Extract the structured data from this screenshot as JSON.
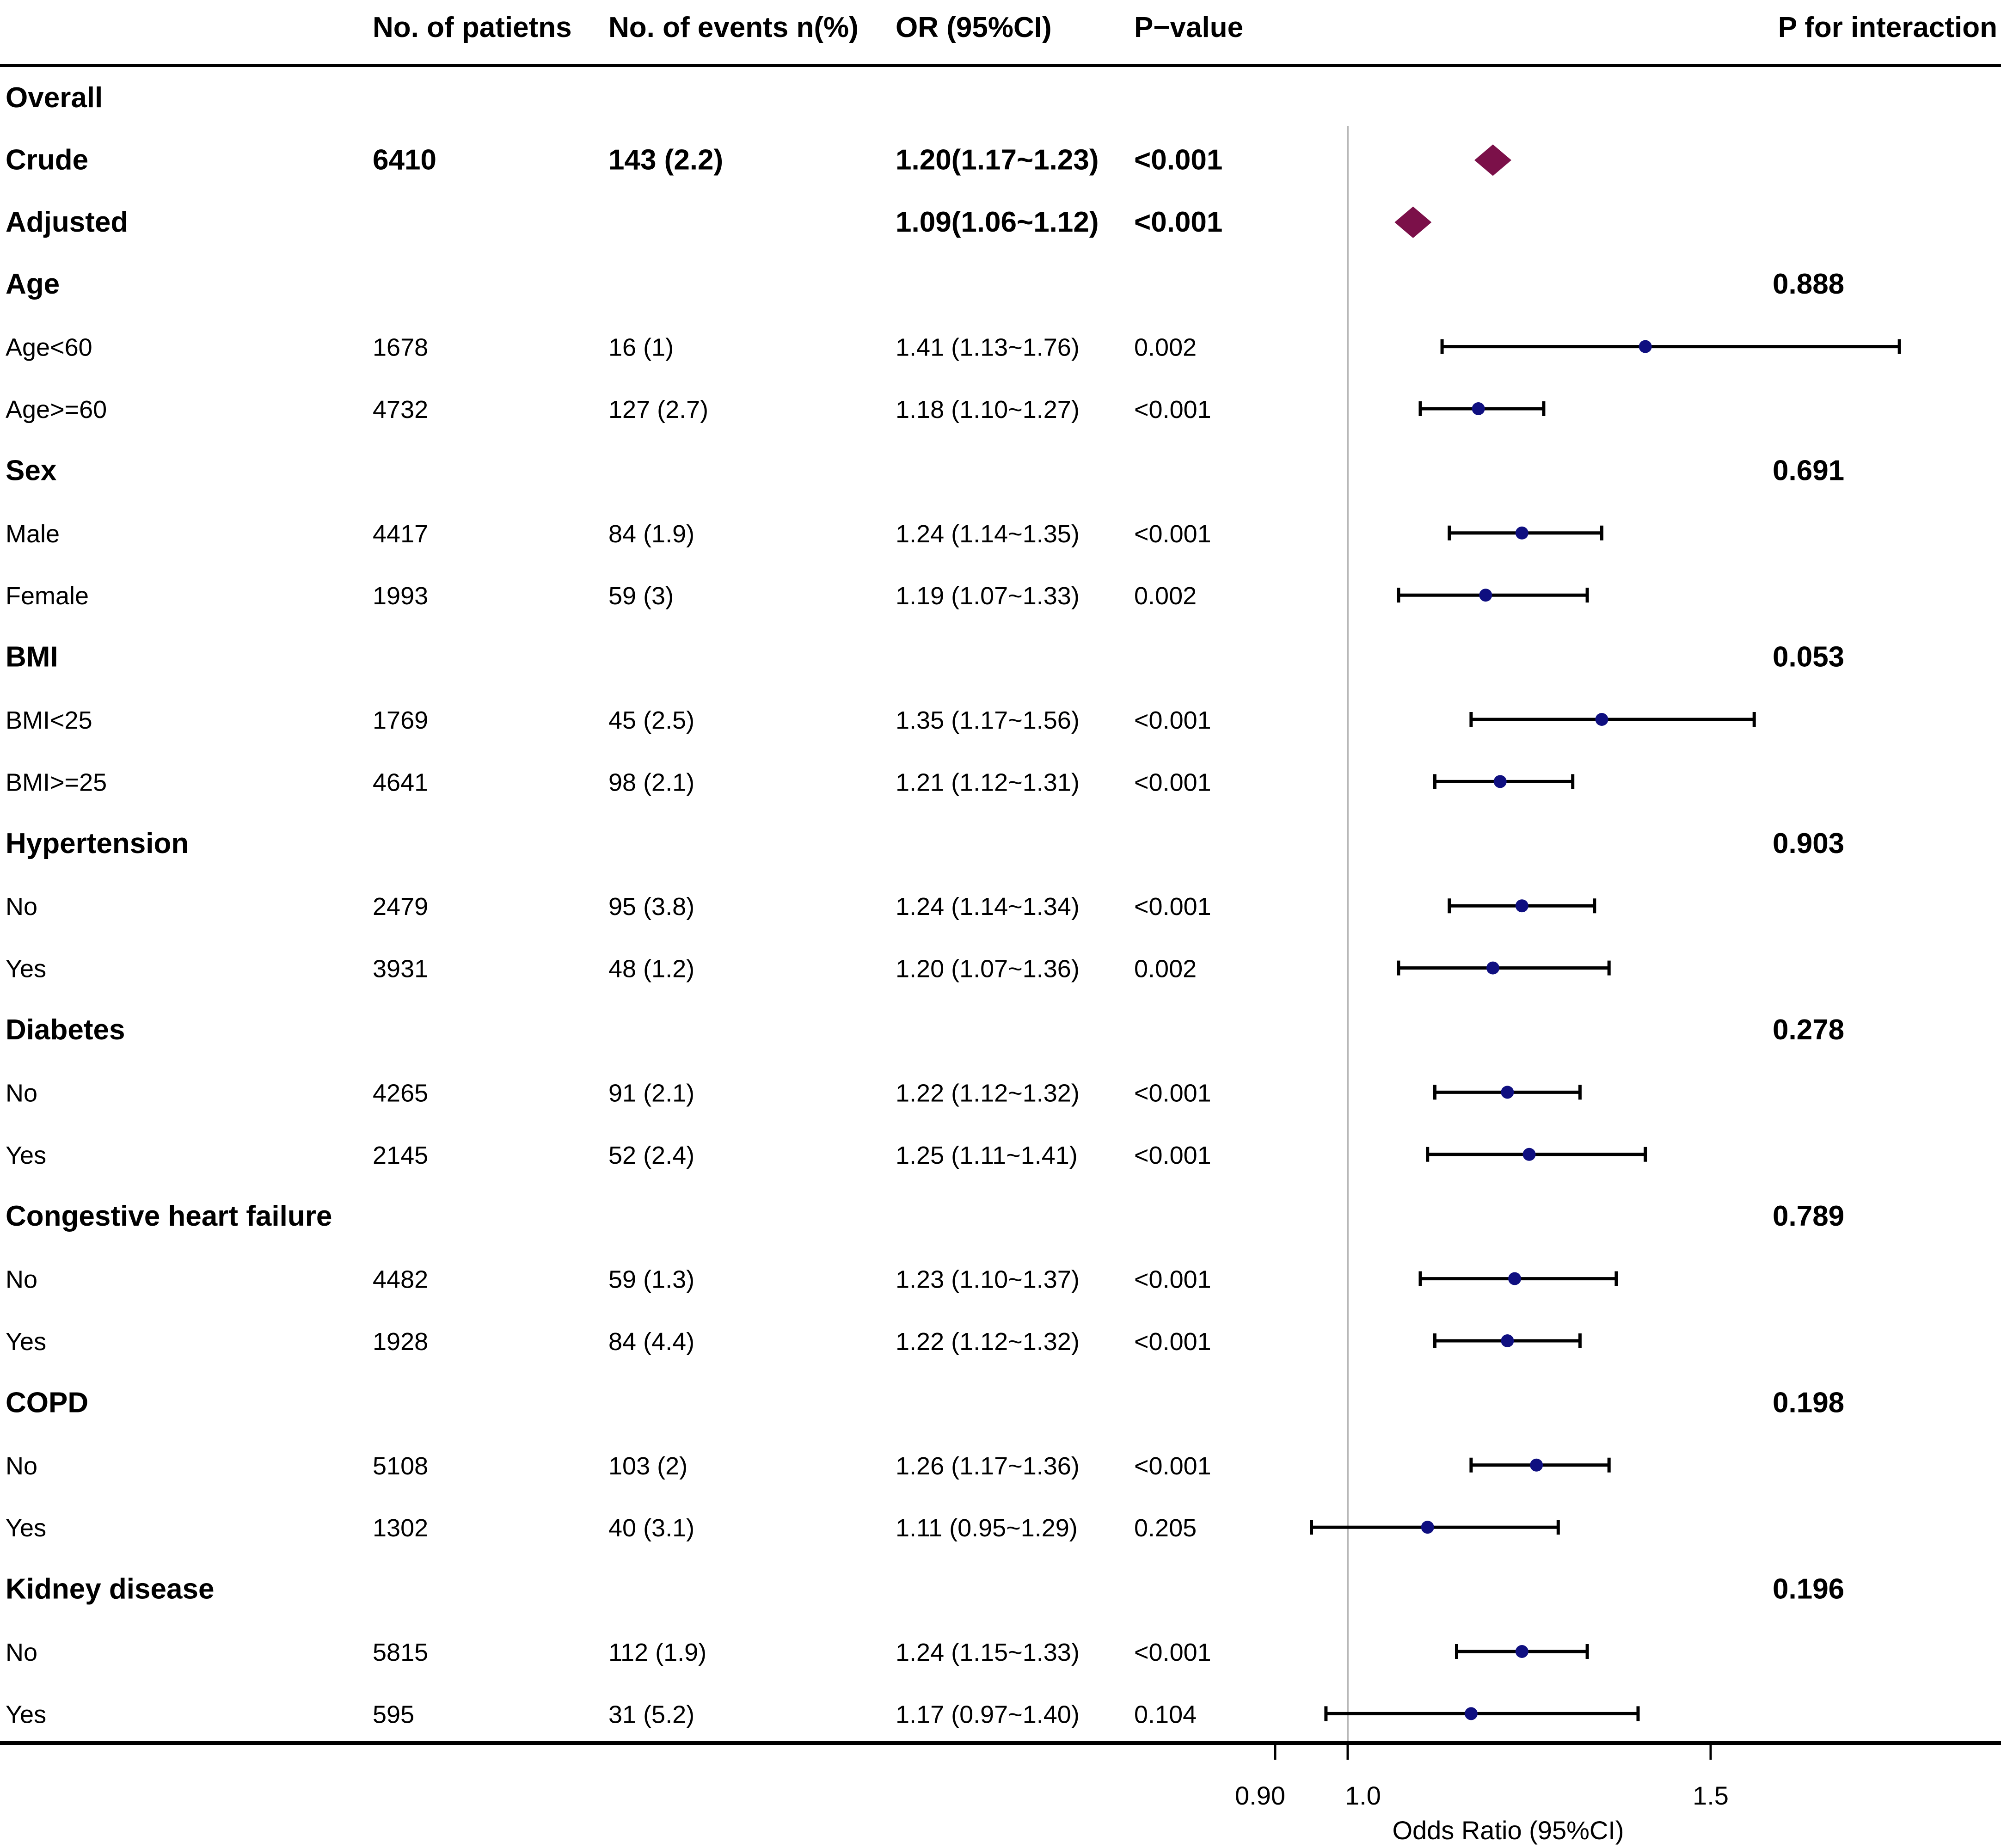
{
  "chart_data": {
    "type": "forest",
    "columns": [
      "No. of patietns",
      "No. of events n(%)",
      "OR (95%CI)",
      "P−value",
      "P for interaction"
    ],
    "rows": [
      {
        "label": "Overall",
        "kind": "group"
      },
      {
        "label": "Crude",
        "kind": "summary",
        "patients": "6410",
        "events": "143 (2.2)",
        "or_text": "1.20(1.17~1.23)",
        "p": "<0.001",
        "or": 1.2,
        "lo": 1.17,
        "hi": 1.23
      },
      {
        "label": "Adjusted",
        "kind": "summary",
        "or_text": "1.09(1.06~1.12)",
        "p": "<0.001",
        "or": 1.09,
        "lo": 1.06,
        "hi": 1.12
      },
      {
        "label": "Age",
        "kind": "group",
        "p_interaction": "0.888"
      },
      {
        "label": "Age<60",
        "kind": "sub",
        "patients": "1678",
        "events": "16 (1)",
        "or_text": "1.41 (1.13~1.76)",
        "p": "0.002",
        "or": 1.41,
        "lo": 1.13,
        "hi": 1.76
      },
      {
        "label": "Age>=60",
        "kind": "sub",
        "patients": "4732",
        "events": "127 (2.7)",
        "or_text": "1.18 (1.10~1.27)",
        "p": "<0.001",
        "or": 1.18,
        "lo": 1.1,
        "hi": 1.27
      },
      {
        "label": "Sex",
        "kind": "group",
        "p_interaction": "0.691"
      },
      {
        "label": "Male",
        "kind": "sub",
        "patients": "4417",
        "events": "84 (1.9)",
        "or_text": "1.24 (1.14~1.35)",
        "p": "<0.001",
        "or": 1.24,
        "lo": 1.14,
        "hi": 1.35
      },
      {
        "label": "Female",
        "kind": "sub",
        "patients": "1993",
        "events": "59 (3)",
        "or_text": "1.19 (1.07~1.33)",
        "p": "0.002",
        "or": 1.19,
        "lo": 1.07,
        "hi": 1.33
      },
      {
        "label": "BMI",
        "kind": "group",
        "p_interaction": "0.053"
      },
      {
        "label": "BMI<25",
        "kind": "sub",
        "patients": "1769",
        "events": "45 (2.5)",
        "or_text": "1.35 (1.17~1.56)",
        "p": "<0.001",
        "or": 1.35,
        "lo": 1.17,
        "hi": 1.56
      },
      {
        "label": "BMI>=25",
        "kind": "sub",
        "patients": "4641",
        "events": "98 (2.1)",
        "or_text": "1.21 (1.12~1.31)",
        "p": "<0.001",
        "or": 1.21,
        "lo": 1.12,
        "hi": 1.31
      },
      {
        "label": "Hypertension",
        "kind": "group",
        "p_interaction": "0.903"
      },
      {
        "label": "No",
        "kind": "sub",
        "patients": "2479",
        "events": "95 (3.8)",
        "or_text": "1.24 (1.14~1.34)",
        "p": "<0.001",
        "or": 1.24,
        "lo": 1.14,
        "hi": 1.34
      },
      {
        "label": "Yes",
        "kind": "sub",
        "patients": "3931",
        "events": "48 (1.2)",
        "or_text": "1.20 (1.07~1.36)",
        "p": "0.002",
        "or": 1.2,
        "lo": 1.07,
        "hi": 1.36
      },
      {
        "label": "Diabetes",
        "kind": "group",
        "p_interaction": "0.278"
      },
      {
        "label": "No",
        "kind": "sub",
        "patients": "4265",
        "events": "91 (2.1)",
        "or_text": "1.22 (1.12~1.32)",
        "p": "<0.001",
        "or": 1.22,
        "lo": 1.12,
        "hi": 1.32
      },
      {
        "label": "Yes",
        "kind": "sub",
        "patients": "2145",
        "events": "52 (2.4)",
        "or_text": "1.25 (1.11~1.41)",
        "p": "<0.001",
        "or": 1.25,
        "lo": 1.11,
        "hi": 1.41
      },
      {
        "label": "Congestive heart failure",
        "kind": "group",
        "p_interaction": "0.789"
      },
      {
        "label": "No",
        "kind": "sub",
        "patients": "4482",
        "events": "59 (1.3)",
        "or_text": "1.23 (1.10~1.37)",
        "p": "<0.001",
        "or": 1.23,
        "lo": 1.1,
        "hi": 1.37
      },
      {
        "label": "Yes",
        "kind": "sub",
        "patients": "1928",
        "events": "84 (4.4)",
        "or_text": "1.22 (1.12~1.32)",
        "p": "<0.001",
        "or": 1.22,
        "lo": 1.12,
        "hi": 1.32
      },
      {
        "label": "COPD",
        "kind": "group",
        "p_interaction": "0.198"
      },
      {
        "label": "No",
        "kind": "sub",
        "patients": "5108",
        "events": "103 (2)",
        "or_text": "1.26 (1.17~1.36)",
        "p": "<0.001",
        "or": 1.26,
        "lo": 1.17,
        "hi": 1.36
      },
      {
        "label": "Yes",
        "kind": "sub",
        "patients": "1302",
        "events": "40 (3.1)",
        "or_text": "1.11 (0.95~1.29)",
        "p": "0.205",
        "or": 1.11,
        "lo": 0.95,
        "hi": 1.29
      },
      {
        "label": "Kidney disease",
        "kind": "group",
        "p_interaction": "0.196"
      },
      {
        "label": "No",
        "kind": "sub",
        "patients": "5815",
        "events": "112 (1.9)",
        "or_text": "1.24 (1.15~1.33)",
        "p": "<0.001",
        "or": 1.24,
        "lo": 1.15,
        "hi": 1.33
      },
      {
        "label": "Yes",
        "kind": "sub",
        "patients": "595",
        "events": "31 (5.2)",
        "or_text": "1.17 (0.97~1.40)",
        "p": "0.104",
        "or": 1.17,
        "lo": 0.97,
        "hi": 1.4
      }
    ],
    "x_axis": {
      "label": "Odds Ratio (95%CI)",
      "ticks": [
        {
          "value": 0.9,
          "label": "0.90"
        },
        {
          "value": 1.0,
          "label": "1.0"
        },
        {
          "value": 1.5,
          "label": "1.5"
        }
      ],
      "reference_line": 1.0,
      "range": [
        0.9,
        1.9
      ]
    },
    "colors": {
      "summary_diamond": "#7b1049",
      "point": "#0f0f80",
      "ci_line": "#000000",
      "reference_line": "#b8b8b8",
      "rule": "#000000"
    }
  }
}
